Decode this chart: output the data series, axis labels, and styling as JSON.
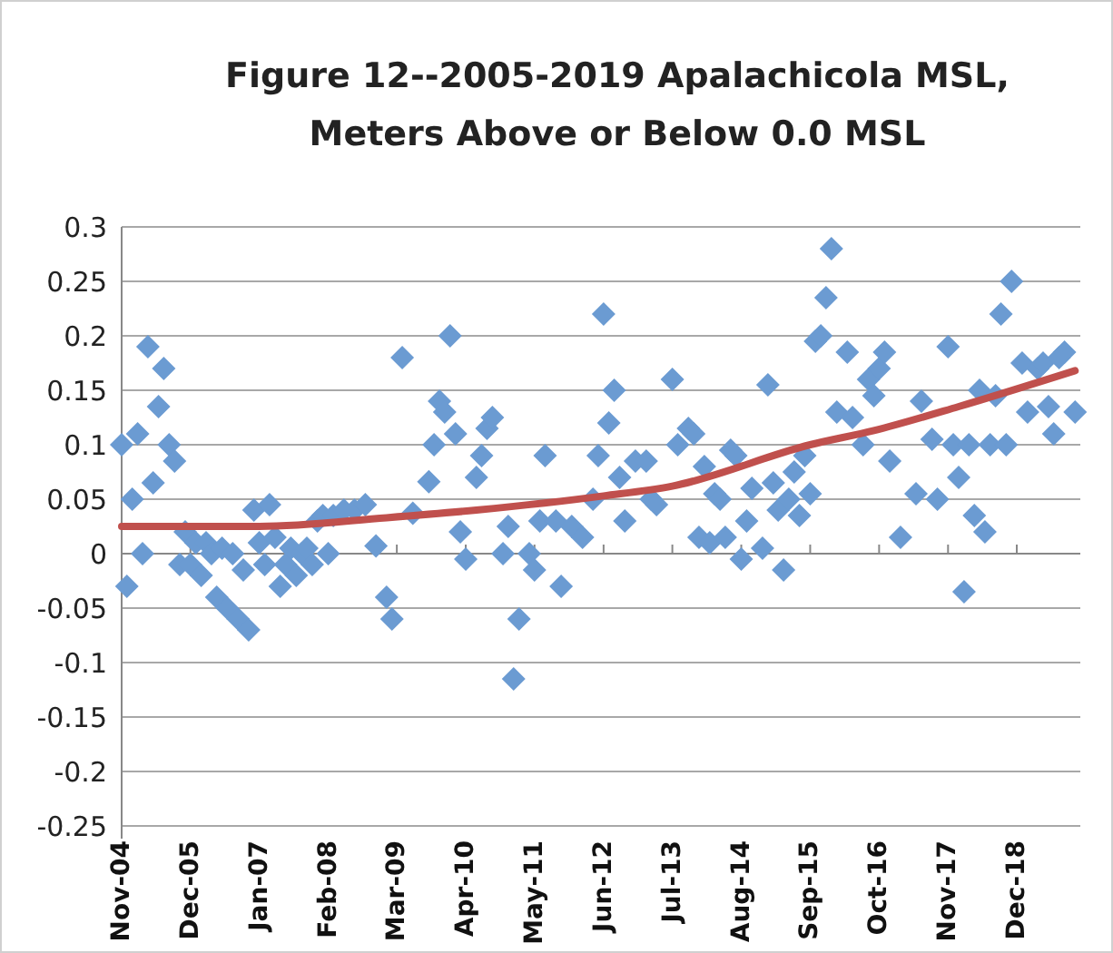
{
  "chart_data": {
    "type": "scatter",
    "title": "Figure 12--2005-2019 Apalachicola MSL,\nMeters Above or Below 0.0 MSL",
    "grid": "y",
    "xlim": [
      "2004-11",
      "2019-12"
    ],
    "xticks": [
      {
        "value": "2004-11",
        "label": "Nov-04"
      },
      {
        "value": "2005-12",
        "label": "Dec-05"
      },
      {
        "value": "2007-01",
        "label": "Jan-07"
      },
      {
        "value": "2008-02",
        "label": "Feb-08"
      },
      {
        "value": "2009-03",
        "label": "Mar-09"
      },
      {
        "value": "2010-04",
        "label": "Apr-10"
      },
      {
        "value": "2011-05",
        "label": "May-11"
      },
      {
        "value": "2012-06",
        "label": "Jun-12"
      },
      {
        "value": "2013-07",
        "label": "Jul-13"
      },
      {
        "value": "2014-08",
        "label": "Aug-14"
      },
      {
        "value": "2015-09",
        "label": "Sep-15"
      },
      {
        "value": "2016-10",
        "label": "Oct-16"
      },
      {
        "value": "2017-11",
        "label": "Nov-17"
      },
      {
        "value": "2018-12",
        "label": "Dec-18"
      }
    ],
    "ylim": [
      -0.25,
      0.3
    ],
    "yticks": [
      -0.25,
      -0.2,
      -0.15,
      -0.1,
      -0.05,
      0,
      0.05,
      0.1,
      0.15,
      0.2,
      0.25,
      0.3
    ],
    "series": [
      {
        "type": "scatter",
        "marker": "diamond",
        "color": "#6b9bd2",
        "x": [
          "2004-11",
          "2004-12",
          "2005-01",
          "2005-02",
          "2005-03",
          "2005-04",
          "2005-05",
          "2005-06",
          "2005-07",
          "2005-08",
          "2005-09",
          "2005-10",
          "2005-11",
          "2005-12",
          "2006-01",
          "2006-02",
          "2006-03",
          "2006-04",
          "2006-05",
          "2006-06",
          "2006-07",
          "2006-08",
          "2006-09",
          "2006-10",
          "2006-11",
          "2006-12",
          "2007-01",
          "2007-02",
          "2007-03",
          "2007-04",
          "2007-05",
          "2007-06",
          "2007-07",
          "2007-08",
          "2007-09",
          "2007-10",
          "2007-11",
          "2007-12",
          "2008-01",
          "2008-02",
          "2008-03",
          "2008-05",
          "2008-07",
          "2008-09",
          "2008-11",
          "2009-01",
          "2009-02",
          "2009-04",
          "2009-06",
          "2009-09",
          "2009-10",
          "2009-11",
          "2009-12",
          "2010-01",
          "2010-02",
          "2010-03",
          "2010-04",
          "2010-06",
          "2010-07",
          "2010-08",
          "2010-09",
          "2010-11",
          "2010-12",
          "2011-01",
          "2011-02",
          "2011-04",
          "2011-05",
          "2011-06",
          "2011-07",
          "2011-09",
          "2011-10",
          "2011-12",
          "2012-02",
          "2012-04",
          "2012-05",
          "2012-06",
          "2012-07",
          "2012-08",
          "2012-09",
          "2012-10",
          "2012-12",
          "2013-02",
          "2013-03",
          "2013-04",
          "2013-07",
          "2013-08",
          "2013-10",
          "2013-11",
          "2013-12",
          "2014-01",
          "2014-02",
          "2014-03",
          "2014-04",
          "2014-05",
          "2014-06",
          "2014-07",
          "2014-08",
          "2014-09",
          "2014-10",
          "2014-12",
          "2015-01",
          "2015-02",
          "2015-03",
          "2015-04",
          "2015-05",
          "2015-06",
          "2015-07",
          "2015-08",
          "2015-09",
          "2015-10",
          "2015-11",
          "2015-12",
          "2016-01",
          "2016-02",
          "2016-04",
          "2016-05",
          "2016-07",
          "2016-08",
          "2016-09",
          "2016-10",
          "2016-11",
          "2016-12",
          "2017-02",
          "2017-05",
          "2017-06",
          "2017-08",
          "2017-09",
          "2017-11",
          "2017-12",
          "2018-01",
          "2018-02",
          "2018-03",
          "2018-04",
          "2018-05",
          "2018-06",
          "2018-07",
          "2018-08",
          "2018-09",
          "2018-10",
          "2018-11",
          "2019-01",
          "2019-02",
          "2019-04",
          "2019-05",
          "2019-06",
          "2019-07",
          "2019-08",
          "2019-09",
          "2019-11"
        ],
        "values": [
          0.1,
          -0.03,
          0.05,
          0.11,
          0,
          0.19,
          0.065,
          0.135,
          0.17,
          0.1,
          0.085,
          -0.01,
          0.02,
          -0.01,
          0.01,
          -0.02,
          0.01,
          0,
          -0.04,
          0.005,
          -0.05,
          0,
          -0.06,
          -0.015,
          -0.07,
          0.04,
          0.01,
          -0.01,
          0.045,
          0.015,
          -0.03,
          -0.01,
          0.005,
          -0.02,
          0,
          0.005,
          -0.01,
          0.03,
          0.035,
          0,
          0.035,
          0.04,
          0.04,
          0.045,
          0.007,
          -0.04,
          -0.06,
          0.18,
          0.037,
          0.066,
          0.1,
          0.14,
          0.13,
          0.2,
          0.11,
          0.02,
          -0.005,
          0.07,
          0.09,
          0.115,
          0.125,
          0,
          0.025,
          -0.115,
          -0.06,
          0,
          -0.015,
          0.03,
          0.09,
          0.03,
          -0.03,
          0.025,
          0.015,
          0.05,
          0.09,
          0.22,
          0.12,
          0.15,
          0.07,
          0.03,
          0.085,
          0.085,
          0.05,
          0.045,
          0.16,
          0.1,
          0.115,
          0.11,
          0.015,
          0.08,
          0.01,
          0.055,
          0.05,
          0.015,
          0.095,
          0.09,
          -0.005,
          0.03,
          0.06,
          0.005,
          0.155,
          0.065,
          0.04,
          -0.015,
          0.05,
          0.075,
          0.035,
          0.09,
          0.055,
          0.195,
          0.2,
          0.235,
          0.28,
          0.13,
          0.185,
          0.125,
          0.1,
          0.16,
          0.145,
          0.17,
          0.185,
          0.085,
          0.015,
          0.055,
          0.14,
          0.105,
          0.05,
          0.19,
          0.1,
          0.07,
          -0.035,
          0.1,
          0.035,
          0.15,
          0.02,
          0.1,
          0.145,
          0.22,
          0.1,
          0.25,
          0.175,
          0.13,
          0.17,
          0.175,
          0.135,
          0.11,
          0.18,
          0.185,
          0.13
        ]
      },
      {
        "type": "line",
        "color": "#c0504d",
        "x": [
          "2004-11",
          "2007-01",
          "2009-01",
          "2010-06",
          "2012-06",
          "2013-07",
          "2015-09",
          "2016-09",
          "2018-01",
          "2019-11"
        ],
        "values": [
          0.025,
          0.025,
          0.033,
          0.04,
          0.053,
          0.062,
          0.1,
          0.113,
          0.135,
          0.168
        ]
      }
    ]
  }
}
